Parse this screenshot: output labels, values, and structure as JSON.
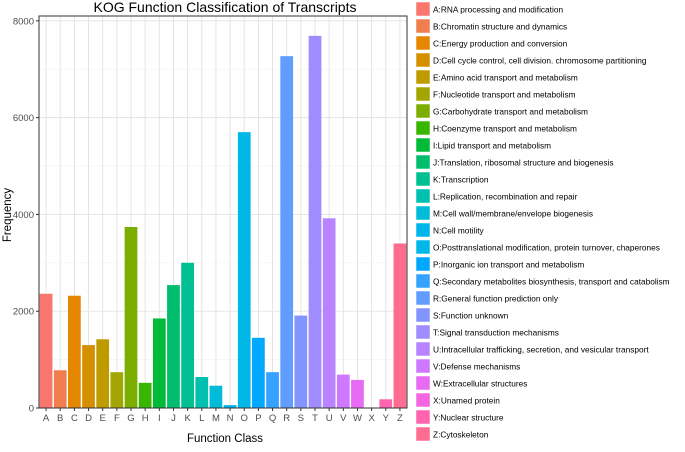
{
  "chart_data": {
    "type": "bar",
    "title": "KOG Function Classification of Transcripts",
    "xlabel": "Function Class",
    "ylabel": "Frequency",
    "ylim": [
      0,
      8100
    ],
    "yticks": [
      0,
      2000,
      4000,
      6000,
      8000
    ],
    "grid": true,
    "legend_position": "right",
    "categories": [
      "A",
      "B",
      "C",
      "D",
      "E",
      "F",
      "G",
      "H",
      "I",
      "J",
      "K",
      "L",
      "M",
      "N",
      "O",
      "P",
      "Q",
      "R",
      "S",
      "T",
      "U",
      "V",
      "W",
      "X",
      "Y",
      "Z"
    ],
    "values": [
      2360,
      780,
      2320,
      1300,
      1420,
      740,
      3740,
      520,
      1850,
      2540,
      3000,
      640,
      460,
      60,
      5700,
      1450,
      740,
      7270,
      1910,
      7690,
      3920,
      690,
      580,
      0,
      180,
      3400
    ],
    "colors": [
      "#F8766D",
      "#F07E4F",
      "#E58700",
      "#D59000",
      "#C09B00",
      "#A3A500",
      "#7CAE00",
      "#39B600",
      "#00BA38",
      "#00BE6D",
      "#00BF90",
      "#00C0AF",
      "#00BCD8",
      "#00B5EB",
      "#00B8E7",
      "#00A9FF",
      "#35A2FF",
      "#619CFF",
      "#8494FF",
      "#9F8CFF",
      "#B983FF",
      "#CF78FF",
      "#E76BF3",
      "#F564E3",
      "#FF64B0",
      "#FF6C91"
    ],
    "legend": [
      "A:RNA processing and modification",
      "B:Chromatin structure and dynamics",
      "C:Energy production and conversion",
      "D:Cell cycle control, cell division. chromosome partitioning",
      "E:Amino acid transport and metabolism",
      "F:Nucleotide transport and metabolism",
      "G:Carbohydrate transport and metabolism",
      "H:Coenzyme transport and metabolism",
      "I:Lipid transport and metabolism",
      "J:Translation, ribosomal structure and biogenesis",
      "K:Transcription",
      "L:Replication, recombination and repair",
      "M:Cell wall/membrane/envelope biogenesis",
      "N:Cell motility",
      "O:Posttranslational modification, protein turnover, chaperones",
      "P:Inorganic ion transport and metabolism",
      "Q:Secondary metabolites biosynthesis, transport and catabolism",
      "R:General function prediction only",
      "S:Function unknown",
      "T:Signal transduction mechanisms",
      "U:Intracellular trafficking, secretion, and vesicular transport",
      "V:Defense mechanisms",
      "W:Extracellular structures",
      "X:Unamed protein",
      "Y:Nuclear structure",
      "Z:Cytoskeleton"
    ]
  }
}
